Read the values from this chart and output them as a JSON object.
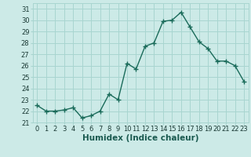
{
  "x": [
    0,
    1,
    2,
    3,
    4,
    5,
    6,
    7,
    8,
    9,
    10,
    11,
    12,
    13,
    14,
    15,
    16,
    17,
    18,
    19,
    20,
    21,
    22,
    23
  ],
  "y": [
    22.5,
    22.0,
    22.0,
    22.1,
    22.3,
    21.4,
    21.6,
    22.0,
    23.5,
    23.0,
    26.2,
    25.7,
    27.7,
    28.0,
    29.9,
    30.0,
    30.7,
    29.4,
    28.1,
    27.5,
    26.4,
    26.4,
    26.0,
    24.6
  ],
  "line_color": "#1a6b5a",
  "marker": "+",
  "marker_size": 4,
  "bg_color": "#cceae7",
  "grid_color": "#a8d5d0",
  "xlabel": "Humidex (Indice chaleur)",
  "xlim": [
    -0.5,
    23.5
  ],
  "ylim": [
    21.0,
    31.5
  ],
  "yticks": [
    21,
    22,
    23,
    24,
    25,
    26,
    27,
    28,
    29,
    30,
    31
  ],
  "xticks": [
    0,
    1,
    2,
    3,
    4,
    5,
    6,
    7,
    8,
    9,
    10,
    11,
    12,
    13,
    14,
    15,
    16,
    17,
    18,
    19,
    20,
    21,
    22,
    23
  ],
  "tick_fontsize": 6,
  "xlabel_fontsize": 7.5,
  "line_width": 1.0
}
